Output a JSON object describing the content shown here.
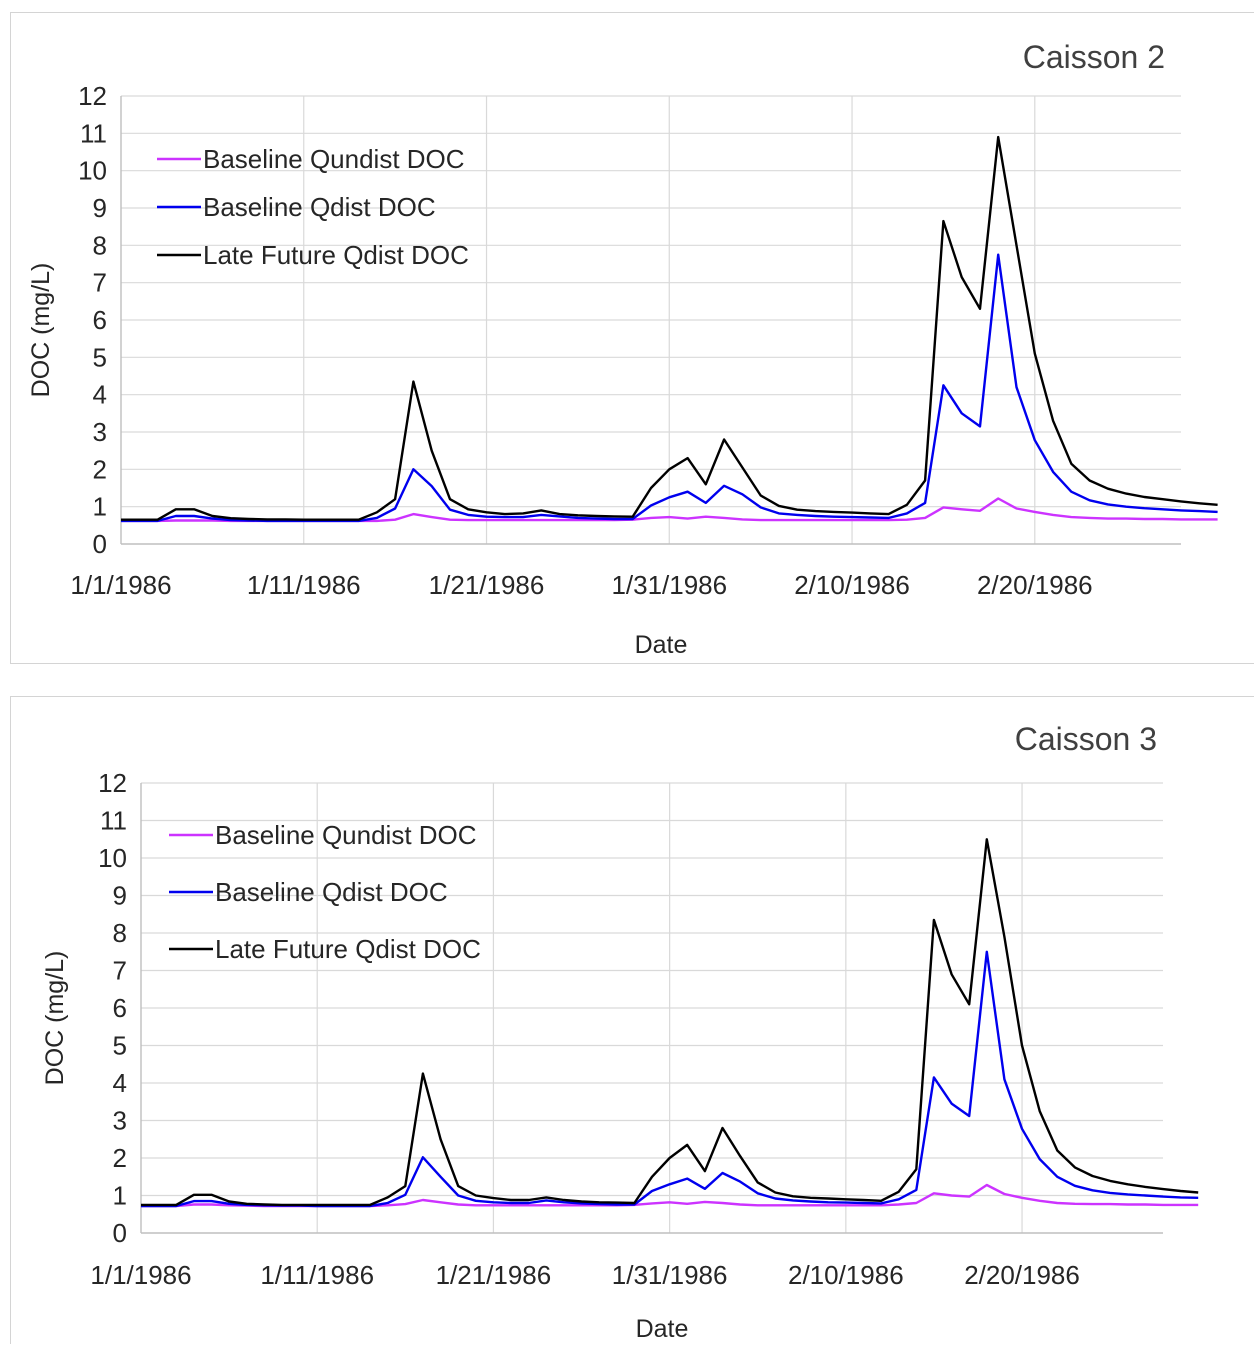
{
  "chart_data": [
    {
      "type": "line",
      "title": "Caisson 2",
      "xlabel": "Date",
      "ylabel": "DOC (mg/L)",
      "x_start": "1/1/1986",
      "x_end": "2/28/1986",
      "xticks": [
        "1/1/1986",
        "1/11/1986",
        "1/21/1986",
        "1/31/1986",
        "2/10/1986",
        "2/20/1986"
      ],
      "ylim": [
        0,
        12
      ],
      "yticks": [
        "0",
        "1",
        "2",
        "3",
        "4",
        "5",
        "6",
        "7",
        "8",
        "9",
        "10",
        "11",
        "12"
      ],
      "grid": true,
      "legend_position": "top-left",
      "series": [
        {
          "name": "Baseline Qundist DOC",
          "color": "#cc33ff",
          "values": [
            0.62,
            0.62,
            0.62,
            0.63,
            0.63,
            0.63,
            0.62,
            0.62,
            0.62,
            0.62,
            0.62,
            0.62,
            0.62,
            0.62,
            0.62,
            0.65,
            0.8,
            0.72,
            0.65,
            0.64,
            0.64,
            0.64,
            0.64,
            0.64,
            0.64,
            0.64,
            0.64,
            0.64,
            0.65,
            0.7,
            0.72,
            0.68,
            0.73,
            0.7,
            0.66,
            0.64,
            0.64,
            0.64,
            0.64,
            0.64,
            0.64,
            0.64,
            0.64,
            0.65,
            0.7,
            0.98,
            0.93,
            0.89,
            1.22,
            0.95,
            0.86,
            0.78,
            0.72,
            0.7,
            0.68,
            0.68,
            0.67,
            0.67,
            0.66,
            0.66,
            0.66
          ]
        },
        {
          "name": "Baseline Qdist DOC",
          "color": "#0000ee",
          "values": [
            0.62,
            0.62,
            0.62,
            0.75,
            0.75,
            0.68,
            0.64,
            0.63,
            0.62,
            0.62,
            0.62,
            0.62,
            0.62,
            0.62,
            0.7,
            0.95,
            2.0,
            1.55,
            0.92,
            0.78,
            0.73,
            0.72,
            0.72,
            0.78,
            0.74,
            0.7,
            0.68,
            0.67,
            0.67,
            1.03,
            1.25,
            1.4,
            1.1,
            1.56,
            1.33,
            0.98,
            0.82,
            0.78,
            0.75,
            0.73,
            0.72,
            0.71,
            0.7,
            0.82,
            1.1,
            4.25,
            3.5,
            3.15,
            7.75,
            4.2,
            2.78,
            1.93,
            1.4,
            1.17,
            1.06,
            1.0,
            0.96,
            0.93,
            0.9,
            0.88,
            0.86
          ]
        },
        {
          "name": "Late Future Qdist DOC",
          "color": "#000000",
          "values": [
            0.65,
            0.65,
            0.65,
            0.93,
            0.93,
            0.75,
            0.69,
            0.67,
            0.66,
            0.66,
            0.65,
            0.65,
            0.65,
            0.65,
            0.85,
            1.2,
            4.35,
            2.5,
            1.2,
            0.93,
            0.85,
            0.8,
            0.82,
            0.9,
            0.8,
            0.77,
            0.75,
            0.74,
            0.73,
            1.5,
            2.0,
            2.3,
            1.6,
            2.8,
            2.05,
            1.3,
            1.02,
            0.92,
            0.88,
            0.86,
            0.84,
            0.82,
            0.8,
            1.05,
            1.7,
            8.65,
            7.15,
            6.3,
            10.9,
            8.0,
            5.1,
            3.3,
            2.15,
            1.7,
            1.48,
            1.35,
            1.26,
            1.2,
            1.14,
            1.09,
            1.05
          ]
        }
      ]
    },
    {
      "type": "line",
      "title": "Caisson 3",
      "xlabel": "Date",
      "ylabel": "DOC (mg/L)",
      "x_start": "1/1/1986",
      "x_end": "2/28/1986",
      "xticks": [
        "1/1/1986",
        "1/11/1986",
        "1/21/1986",
        "1/31/1986",
        "2/10/1986",
        "2/20/1986"
      ],
      "ylim": [
        0,
        12
      ],
      "yticks": [
        "0",
        "1",
        "2",
        "3",
        "4",
        "5",
        "6",
        "7",
        "8",
        "9",
        "10",
        "11",
        "12"
      ],
      "grid": true,
      "legend_position": "top-left",
      "series": [
        {
          "name": "Baseline Qundist DOC",
          "color": "#cc33ff",
          "values": [
            0.72,
            0.72,
            0.72,
            0.76,
            0.76,
            0.74,
            0.73,
            0.72,
            0.72,
            0.72,
            0.72,
            0.72,
            0.72,
            0.72,
            0.74,
            0.77,
            0.88,
            0.82,
            0.76,
            0.74,
            0.74,
            0.74,
            0.74,
            0.74,
            0.74,
            0.74,
            0.74,
            0.74,
            0.75,
            0.79,
            0.82,
            0.78,
            0.83,
            0.8,
            0.76,
            0.74,
            0.74,
            0.74,
            0.74,
            0.74,
            0.74,
            0.74,
            0.74,
            0.76,
            0.8,
            1.06,
            1.0,
            0.97,
            1.28,
            1.04,
            0.94,
            0.86,
            0.8,
            0.78,
            0.77,
            0.77,
            0.76,
            0.76,
            0.75,
            0.75,
            0.75
          ]
        },
        {
          "name": "Baseline Qdist DOC",
          "color": "#0000ee",
          "values": [
            0.72,
            0.72,
            0.72,
            0.85,
            0.85,
            0.78,
            0.75,
            0.74,
            0.73,
            0.73,
            0.72,
            0.72,
            0.72,
            0.72,
            0.8,
            1.02,
            2.02,
            1.5,
            1.0,
            0.86,
            0.82,
            0.8,
            0.8,
            0.87,
            0.82,
            0.79,
            0.77,
            0.76,
            0.76,
            1.12,
            1.3,
            1.45,
            1.18,
            1.6,
            1.37,
            1.06,
            0.92,
            0.87,
            0.84,
            0.82,
            0.81,
            0.8,
            0.79,
            0.9,
            1.15,
            4.15,
            3.45,
            3.12,
            7.5,
            4.1,
            2.78,
            1.97,
            1.5,
            1.26,
            1.14,
            1.07,
            1.03,
            1.0,
            0.97,
            0.95,
            0.94
          ]
        },
        {
          "name": "Late Future Qdist DOC",
          "color": "#000000",
          "values": [
            0.75,
            0.75,
            0.75,
            1.02,
            1.02,
            0.84,
            0.78,
            0.76,
            0.75,
            0.75,
            0.75,
            0.75,
            0.75,
            0.75,
            0.95,
            1.25,
            4.25,
            2.5,
            1.25,
            1.0,
            0.93,
            0.88,
            0.88,
            0.95,
            0.88,
            0.84,
            0.82,
            0.81,
            0.8,
            1.5,
            2.0,
            2.35,
            1.65,
            2.8,
            2.05,
            1.35,
            1.08,
            0.98,
            0.94,
            0.92,
            0.9,
            0.88,
            0.86,
            1.1,
            1.7,
            8.35,
            6.9,
            6.1,
            10.5,
            7.9,
            5.0,
            3.25,
            2.2,
            1.75,
            1.52,
            1.39,
            1.3,
            1.23,
            1.17,
            1.12,
            1.08
          ]
        }
      ]
    }
  ]
}
